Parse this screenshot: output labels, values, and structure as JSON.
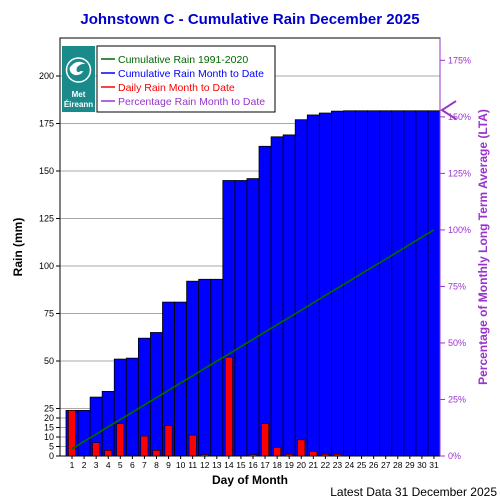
{
  "chart_data": {
    "type": "bar",
    "title": "Johnstown C - Cumulative Rain December   2025",
    "xlabel": "Day of Month",
    "ylabel": "Rain (mm)",
    "y2label": "Percentage  of Monthly Long Term Average (LTA)",
    "ylim": [
      0,
      220
    ],
    "y_ticks": [
      0,
      5,
      10,
      15,
      20,
      25,
      50,
      75,
      100,
      125,
      150,
      175,
      200
    ],
    "y2_ticks": [
      "0%",
      "25%",
      "50%",
      "75%",
      "100%",
      "125%",
      "150%",
      "175%"
    ],
    "y2_tick_values": [
      0,
      25,
      50,
      75,
      100,
      125,
      150,
      175
    ],
    "lta_total_mm": 119,
    "categories": [
      "1",
      "2",
      "3",
      "4",
      "5",
      "6",
      "7",
      "8",
      "9",
      "10",
      "11",
      "12",
      "13",
      "14",
      "15",
      "16",
      "17",
      "18",
      "19",
      "20",
      "21",
      "22",
      "23",
      "24",
      "25",
      "26",
      "27",
      "28",
      "29",
      "30",
      "31"
    ],
    "grid": true,
    "legend_position": "top-left",
    "series": [
      {
        "name": "Cumulative Rain 1991-2020",
        "type": "line",
        "color": "#006600",
        "values": [
          3.8,
          7.7,
          11.5,
          15.4,
          19.2,
          23.0,
          26.9,
          30.7,
          34.5,
          38.4,
          42.2,
          46.1,
          49.9,
          53.7,
          57.6,
          61.4,
          65.3,
          69.1,
          72.9,
          76.8,
          80.6,
          84.5,
          88.3,
          92.1,
          96.0,
          99.8,
          103.6,
          107.5,
          111.3,
          115.2,
          119.0
        ]
      },
      {
        "name": "Cumulative Rain Month to Date",
        "type": "bar",
        "color": "#0000ff",
        "values": [
          24,
          24,
          31,
          34,
          51,
          51.5,
          62,
          65,
          81,
          81,
          92,
          93,
          93,
          145,
          145,
          146,
          163,
          168,
          169,
          177,
          179.5,
          180.5,
          181.5,
          181.7,
          181.7,
          181.7,
          181.7,
          181.7,
          181.7,
          181.7,
          181.7
        ]
      },
      {
        "name": "Daily Rain Month to Date",
        "type": "bar",
        "color": "#ff0000",
        "values": [
          24,
          0.3,
          7,
          3,
          17,
          0.5,
          10.5,
          3,
          16,
          0.3,
          11,
          0.8,
          0.3,
          52,
          0.3,
          0.8,
          17,
          4.5,
          1,
          8.5,
          2.5,
          1,
          1,
          0.2,
          0,
          0,
          0,
          0,
          0,
          0,
          0
        ]
      },
      {
        "name": "Percentage Rain Month to Date",
        "type": "marker",
        "color": "#9933cc",
        "value_percent": 153
      }
    ],
    "footer": "Latest Data 31 December 2025"
  },
  "logo": {
    "line1": "Met",
    "line2": "Éireann",
    "background": "#1a8a8a"
  },
  "colors": {
    "cumulative_bar": "#0000ff",
    "daily_bar": "#ff0000",
    "lta_line": "#006600",
    "percent_axis": "#9933cc",
    "title": "#0000cc"
  }
}
